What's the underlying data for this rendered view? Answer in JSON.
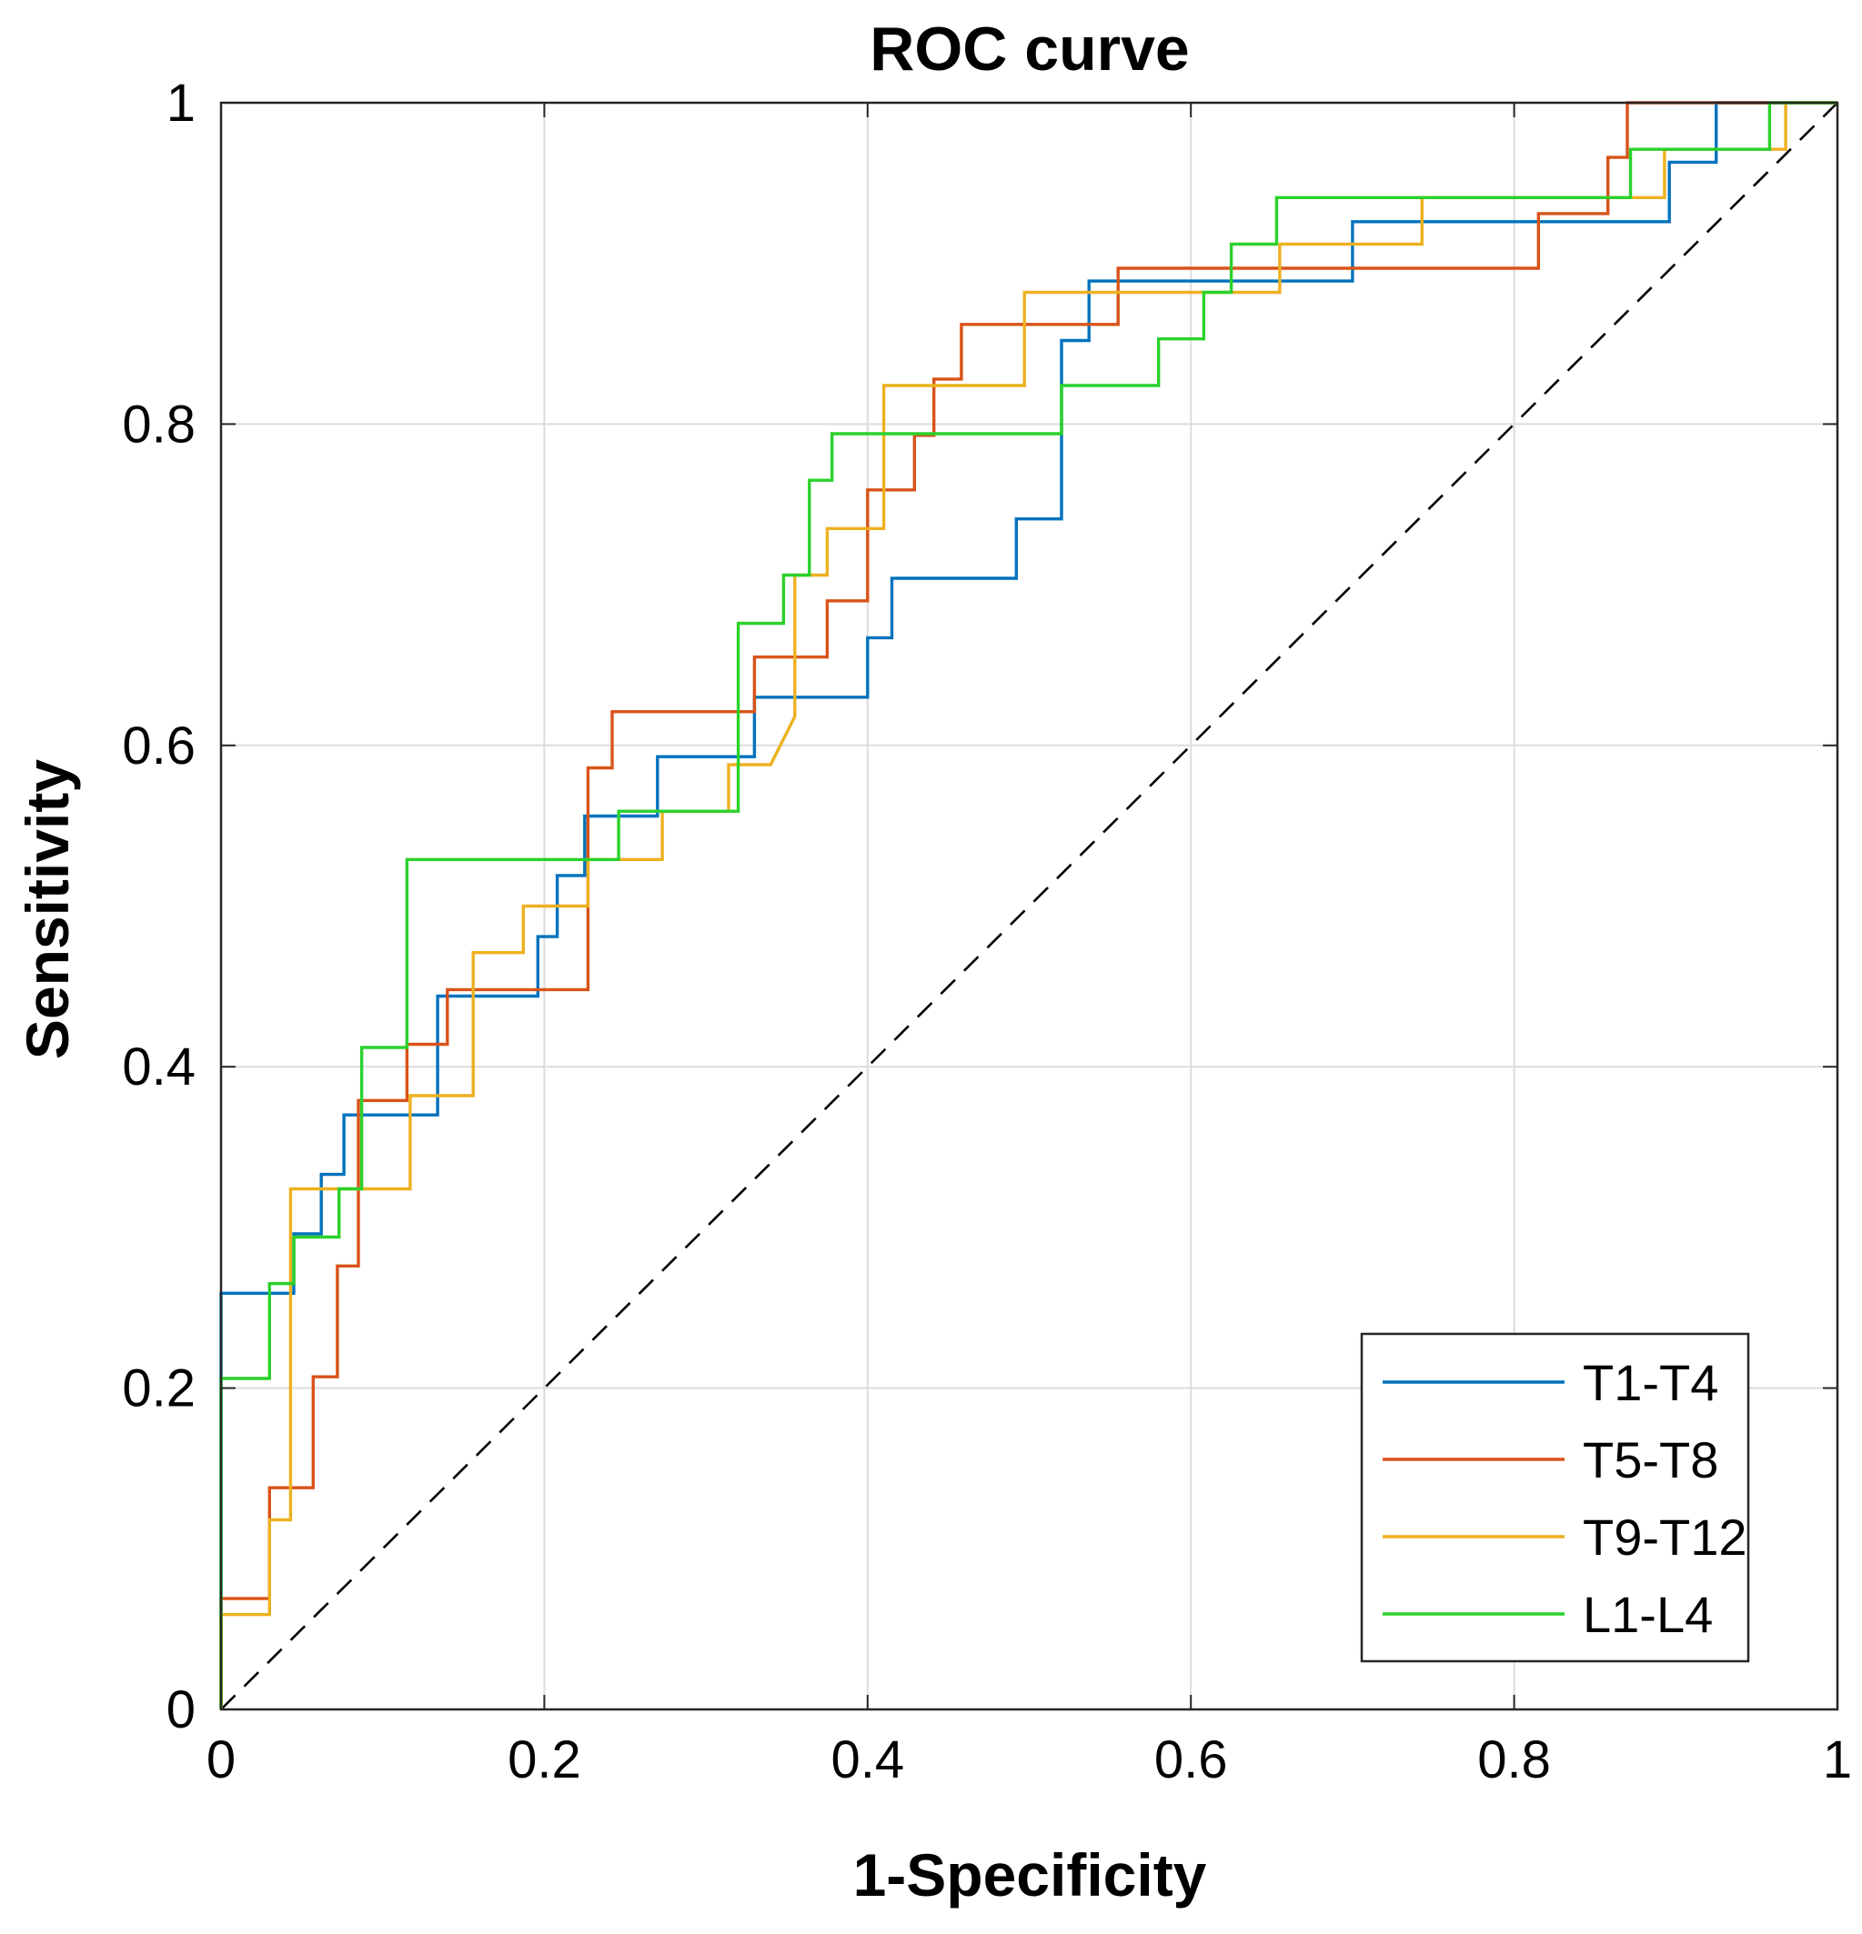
{
  "chart_data": {
    "type": "line",
    "title": "ROC curve",
    "xlabel": "1-Specificity",
    "ylabel": "Sensitivity",
    "xlim": [
      0,
      1
    ],
    "ylim": [
      0,
      1
    ],
    "xticks": [
      0,
      0.2,
      0.4,
      0.6,
      0.8,
      1
    ],
    "yticks": [
      0,
      0.2,
      0.4,
      0.6,
      0.8,
      1
    ],
    "xtick_labels": [
      "0",
      "0.2",
      "0.4",
      "0.6",
      "0.8",
      "1"
    ],
    "ytick_labels": [
      "0",
      "0.2",
      "0.4",
      "0.6",
      "0.8",
      "1"
    ],
    "grid": true,
    "legend_position": "bottom-right",
    "reference_line": {
      "name": "chance",
      "x": [
        0,
        1
      ],
      "y": [
        0,
        1
      ],
      "color": "#000000",
      "style": "dashed"
    },
    "series": [
      {
        "name": "T1-T4",
        "color": "#0072BD",
        "x": [
          0,
          0,
          0.045,
          0.045,
          0.062,
          0.062,
          0.076,
          0.076,
          0.134,
          0.134,
          0.196,
          0.196,
          0.208,
          0.208,
          0.225,
          0.225,
          0.27,
          0.27,
          0.33,
          0.33,
          0.4,
          0.4,
          0.415,
          0.415,
          0.492,
          0.492,
          0.52,
          0.52,
          0.537,
          0.537,
          0.7,
          0.7,
          0.896,
          0.896,
          0.925,
          0.925,
          1
        ],
        "y": [
          0,
          0.259,
          0.259,
          0.296,
          0.296,
          0.333,
          0.333,
          0.37,
          0.37,
          0.444,
          0.444,
          0.481,
          0.481,
          0.519,
          0.519,
          0.556,
          0.556,
          0.593,
          0.593,
          0.63,
          0.63,
          0.667,
          0.667,
          0.704,
          0.704,
          0.741,
          0.741,
          0.852,
          0.852,
          0.889,
          0.889,
          0.926,
          0.926,
          0.963,
          0.963,
          1,
          1
        ]
      },
      {
        "name": "T5-T8",
        "color": "#D95319",
        "x": [
          0,
          0,
          0.03,
          0.03,
          0.057,
          0.057,
          0.072,
          0.072,
          0.085,
          0.085,
          0.115,
          0.115,
          0.14,
          0.14,
          0.227,
          0.227,
          0.242,
          0.242,
          0.33,
          0.33,
          0.375,
          0.375,
          0.4,
          0.4,
          0.429,
          0.429,
          0.441,
          0.441,
          0.458,
          0.458,
          0.555,
          0.555,
          0.815,
          0.815,
          0.858,
          0.858,
          0.87,
          0.87,
          1
        ],
        "y": [
          0,
          0.069,
          0.069,
          0.138,
          0.138,
          0.207,
          0.207,
          0.276,
          0.276,
          0.379,
          0.379,
          0.414,
          0.414,
          0.448,
          0.448,
          0.586,
          0.586,
          0.621,
          0.621,
          0.655,
          0.655,
          0.69,
          0.69,
          0.759,
          0.759,
          0.793,
          0.793,
          0.828,
          0.828,
          0.862,
          0.862,
          0.897,
          0.897,
          0.931,
          0.931,
          0.966,
          0.966,
          1,
          1
        ]
      },
      {
        "name": "T9-T12",
        "color": "#EDB120",
        "x": [
          0,
          0,
          0.03,
          0.03,
          0.043,
          0.043,
          0.117,
          0.117,
          0.156,
          0.156,
          0.187,
          0.187,
          0.227,
          0.227,
          0.273,
          0.273,
          0.314,
          0.314,
          0.34,
          0.355,
          0.355,
          0.375,
          0.375,
          0.41,
          0.41,
          0.497,
          0.497,
          0.655,
          0.655,
          0.743,
          0.743,
          0.893,
          0.893,
          0.968,
          0.968,
          1
        ],
        "y": [
          0,
          0.059,
          0.059,
          0.118,
          0.118,
          0.324,
          0.324,
          0.382,
          0.382,
          0.471,
          0.471,
          0.5,
          0.5,
          0.529,
          0.529,
          0.559,
          0.559,
          0.588,
          0.588,
          0.618,
          0.706,
          0.706,
          0.735,
          0.735,
          0.824,
          0.824,
          0.882,
          0.882,
          0.912,
          0.912,
          0.941,
          0.941,
          0.971,
          0.971,
          1,
          1
        ]
      },
      {
        "name": "L1-L4",
        "color": "#2BD12B",
        "x": [
          0,
          0,
          0.03,
          0.03,
          0.045,
          0.045,
          0.073,
          0.073,
          0.087,
          0.087,
          0.115,
          0.115,
          0.246,
          0.246,
          0.32,
          0.32,
          0.348,
          0.348,
          0.364,
          0.364,
          0.378,
          0.378,
          0.52,
          0.52,
          0.58,
          0.58,
          0.608,
          0.608,
          0.625,
          0.625,
          0.653,
          0.653,
          0.872,
          0.872,
          0.958,
          0.958,
          1
        ],
        "y": [
          0,
          0.206,
          0.206,
          0.265,
          0.265,
          0.294,
          0.294,
          0.324,
          0.324,
          0.412,
          0.412,
          0.529,
          0.529,
          0.559,
          0.559,
          0.676,
          0.676,
          0.706,
          0.706,
          0.765,
          0.765,
          0.794,
          0.794,
          0.824,
          0.824,
          0.853,
          0.853,
          0.882,
          0.882,
          0.912,
          0.912,
          0.941,
          0.941,
          0.971,
          0.971,
          1,
          1
        ]
      }
    ]
  }
}
